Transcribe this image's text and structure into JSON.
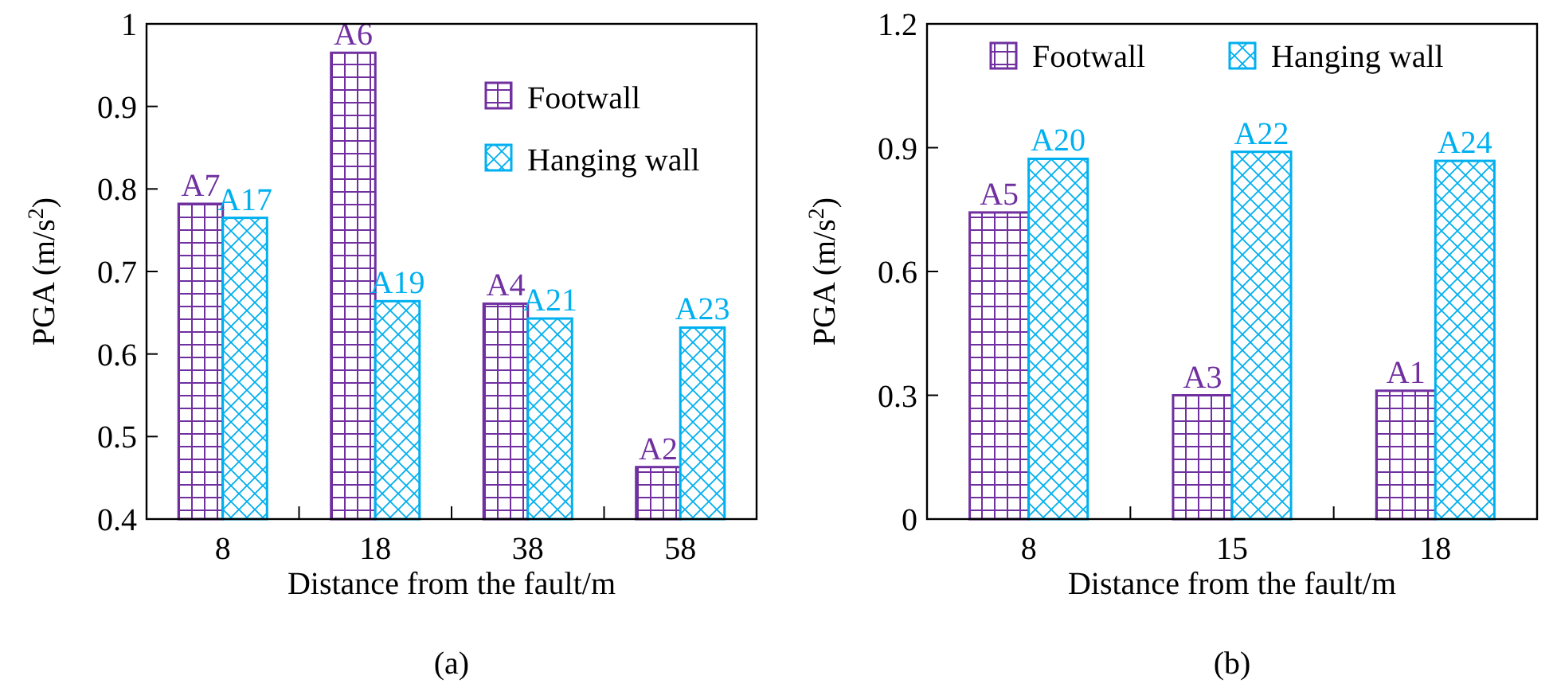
{
  "chart_data": [
    {
      "type": "bar",
      "xlabel": "Distance from the fault/m",
      "ylabel": "PGA (m/s$^{2}$)",
      "categories": [
        "8",
        "18",
        "38",
        "58"
      ],
      "ylim": [
        0.4,
        1
      ],
      "yticks": [
        0.4,
        0.5,
        0.6,
        0.7,
        0.8,
        0.9,
        1
      ],
      "legend": "top right",
      "grid": false,
      "annotations": [
        "(a)"
      ],
      "series": [
        {
          "name": "Footwall",
          "color": "#7030a0",
          "values": [
            0.782,
            0.965,
            0.661,
            0.463
          ],
          "value_labels": [
            "A7",
            "A6",
            "A4",
            "A2"
          ]
        },
        {
          "name": "Hanging wall",
          "color": "#00b0f0",
          "values": [
            0.765,
            0.664,
            0.643,
            0.632
          ],
          "value_labels": [
            "A17",
            "A19",
            "A21",
            "A23"
          ]
        }
      ]
    },
    {
      "type": "bar",
      "xlabel": "Distance from the fault/m",
      "ylabel": "PGA (m/s$^{2}$)",
      "categories": [
        "8",
        "15",
        "18"
      ],
      "ylim": [
        0,
        1.2
      ],
      "yticks": [
        0,
        0.3,
        0.6,
        0.9,
        1.2
      ],
      "legend": "top",
      "grid": false,
      "annotations": [
        "(b)"
      ],
      "series": [
        {
          "name": "Footwall",
          "color": "#7030a0",
          "values": [
            0.743,
            0.3,
            0.311
          ],
          "value_labels": [
            "A5",
            "A3",
            "A1"
          ]
        },
        {
          "name": "Hanging wall",
          "color": "#00b0f0",
          "values": [
            0.873,
            0.89,
            0.868
          ],
          "value_labels": [
            "A20",
            "A22",
            "A24"
          ]
        }
      ]
    }
  ]
}
